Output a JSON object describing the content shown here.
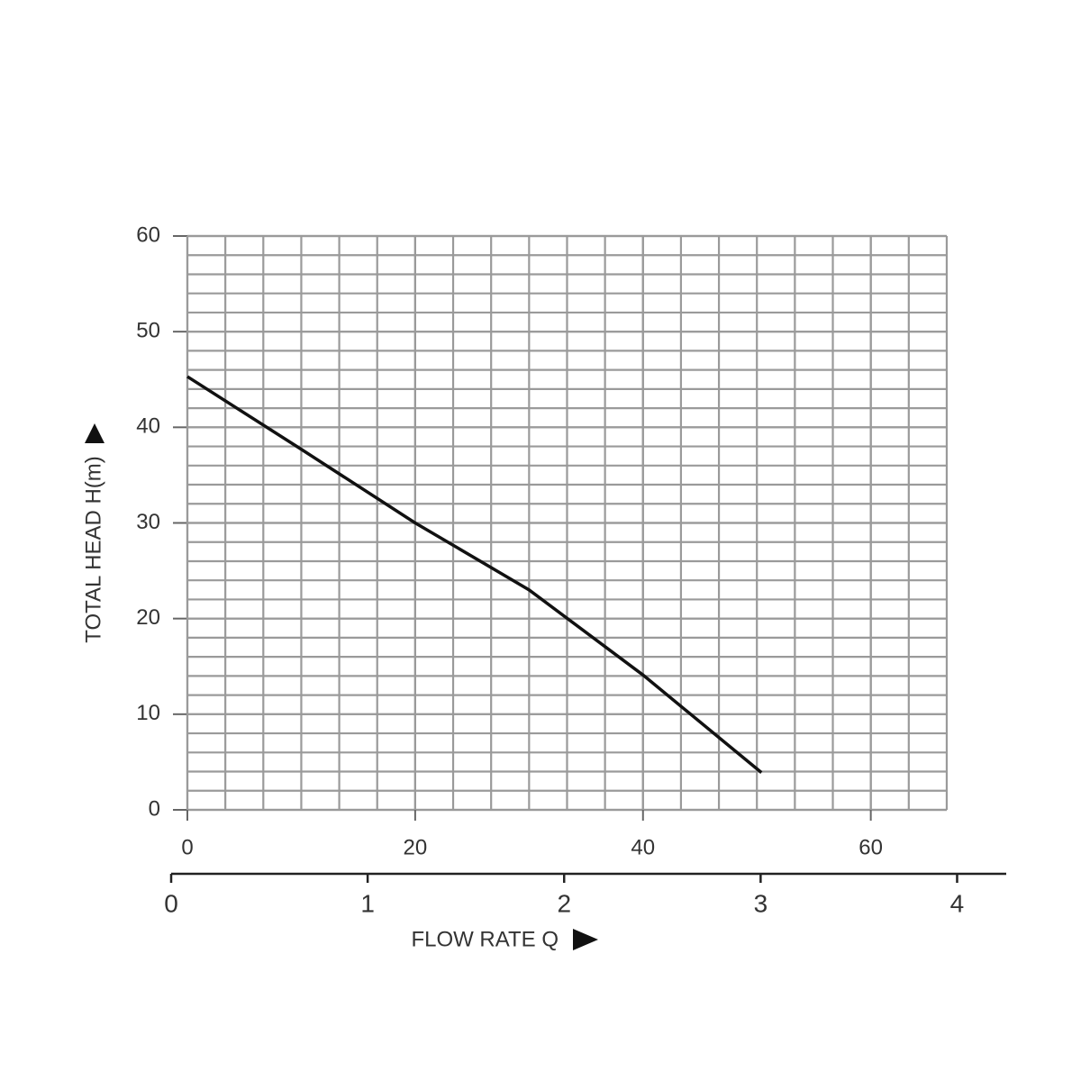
{
  "chart_data": {
    "type": "line",
    "x_label": "FLOW RATE Q",
    "y_label": "TOTAL HEAD H(m)",
    "x": [
      0,
      10,
      20,
      30,
      40,
      50.4
    ],
    "values": [
      45.3,
      37.7,
      30,
      23,
      14.1,
      3.9
    ],
    "color": "#111111",
    "xlim": [
      0,
      66.67
    ],
    "xticks": [
      0,
      20,
      40,
      60
    ],
    "ylim": [
      0,
      60
    ],
    "yticks": [
      0,
      10,
      20,
      30,
      40,
      50,
      60
    ],
    "x2lim": [
      0,
      4.25
    ],
    "x2ticks": [
      0,
      1,
      2,
      3,
      4
    ],
    "grid": true
  }
}
